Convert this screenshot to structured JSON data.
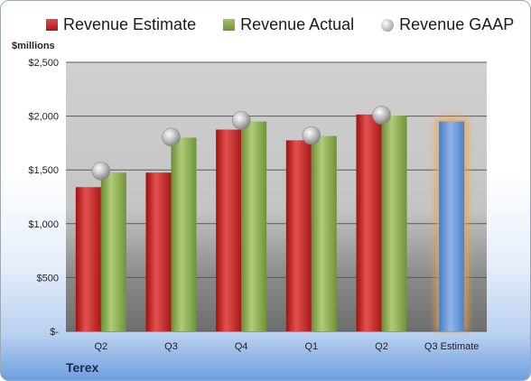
{
  "chart_data": {
    "type": "bar",
    "unit_label": "$millions",
    "company": "Terex",
    "categories": [
      "Q2",
      "Q3",
      "Q4",
      "Q1",
      "Q2",
      "Q3 Estimate"
    ],
    "series": [
      {
        "name": "Revenue Estimate",
        "values": [
          1340,
          1475,
          1875,
          1775,
          2015,
          null
        ],
        "color": "#c62828"
      },
      {
        "name": "Revenue Actual",
        "values": [
          1475,
          1800,
          1950,
          1815,
          2005,
          null
        ],
        "color": "#88aa4a"
      },
      {
        "name": "Revenue GAAP",
        "values": [
          1490,
          1805,
          1960,
          1820,
          2010,
          null
        ],
        "color": "#bdbdbd"
      }
    ],
    "forecast": {
      "category": "Q3 Estimate",
      "value": 1950,
      "color": "#5b8fd6",
      "highlight": "#f5a340"
    },
    "ylim": [
      0,
      2500
    ],
    "yticks": [
      0,
      500,
      1000,
      1500,
      2000,
      2500
    ],
    "ytick_labels": [
      "$-",
      "$500",
      "$1,000",
      "$1,500",
      "$2,000",
      "$2,500"
    ],
    "grid": true,
    "legend_position": "top"
  }
}
